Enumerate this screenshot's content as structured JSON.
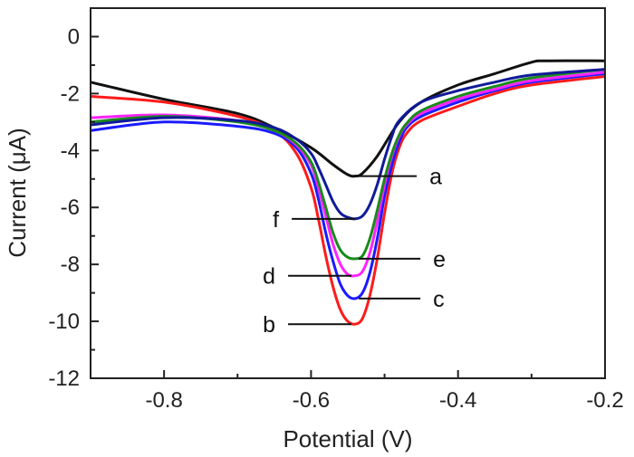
{
  "chart_data": {
    "type": "line",
    "title": "",
    "xlabel": "Potential (V)",
    "ylabel": "Current (μA)",
    "xlim": [
      -0.9,
      -0.2
    ],
    "ylim": [
      -12,
      1
    ],
    "xticks": [
      -0.8,
      -0.6,
      -0.4,
      -0.2
    ],
    "xtick_labels": [
      "-0.8",
      "-0.6",
      "-0.4",
      "-0.2"
    ],
    "yticks": [
      0,
      -2,
      -4,
      -6,
      -8,
      -10,
      -12
    ],
    "ytick_labels": [
      "0",
      "-2",
      "-4",
      "-6",
      "-8",
      "-10",
      "-12"
    ],
    "grid": false,
    "series": [
      {
        "name": "a",
        "color": "#111111",
        "x": [
          -0.9,
          -0.8,
          -0.7,
          -0.65,
          -0.6,
          -0.57,
          -0.55,
          -0.54,
          -0.53,
          -0.51,
          -0.48,
          -0.45,
          -0.4,
          -0.35,
          -0.3,
          -0.28,
          -0.2
        ],
        "y": [
          -1.6,
          -2.2,
          -2.7,
          -3.2,
          -3.9,
          -4.5,
          -4.85,
          -4.9,
          -4.8,
          -4.2,
          -3.0,
          -2.3,
          -1.7,
          -1.3,
          -0.9,
          -0.85,
          -0.85
        ]
      },
      {
        "name": "b",
        "color": "#ff1a1a",
        "x": [
          -0.9,
          -0.8,
          -0.7,
          -0.65,
          -0.62,
          -0.6,
          -0.59,
          -0.58,
          -0.57,
          -0.56,
          -0.55,
          -0.54,
          -0.53,
          -0.52,
          -0.51,
          -0.5,
          -0.49,
          -0.48,
          -0.47,
          -0.45,
          -0.4,
          -0.35,
          -0.3,
          -0.2
        ],
        "y": [
          -2.1,
          -2.3,
          -2.8,
          -3.3,
          -4.1,
          -5.3,
          -6.4,
          -7.7,
          -8.8,
          -9.6,
          -10.0,
          -10.1,
          -9.9,
          -9.1,
          -7.8,
          -6.2,
          -4.8,
          -3.9,
          -3.4,
          -2.95,
          -2.45,
          -2.0,
          -1.7,
          -1.4
        ]
      },
      {
        "name": "c",
        "color": "#1a1aff",
        "x": [
          -0.9,
          -0.8,
          -0.7,
          -0.65,
          -0.62,
          -0.6,
          -0.59,
          -0.58,
          -0.57,
          -0.56,
          -0.55,
          -0.54,
          -0.53,
          -0.52,
          -0.51,
          -0.5,
          -0.49,
          -0.48,
          -0.47,
          -0.45,
          -0.4,
          -0.35,
          -0.3,
          -0.2
        ],
        "y": [
          -3.3,
          -3.0,
          -3.15,
          -3.4,
          -3.9,
          -4.8,
          -5.7,
          -6.9,
          -7.9,
          -8.7,
          -9.1,
          -9.2,
          -9.0,
          -8.3,
          -7.1,
          -5.6,
          -4.5,
          -3.7,
          -3.2,
          -2.8,
          -2.3,
          -1.9,
          -1.6,
          -1.3
        ]
      },
      {
        "name": "d",
        "color": "#ff22ff",
        "x": [
          -0.9,
          -0.8,
          -0.7,
          -0.65,
          -0.62,
          -0.6,
          -0.59,
          -0.58,
          -0.57,
          -0.56,
          -0.55,
          -0.54,
          -0.53,
          -0.52,
          -0.51,
          -0.5,
          -0.49,
          -0.48,
          -0.47,
          -0.45,
          -0.4,
          -0.35,
          -0.3,
          -0.2
        ],
        "y": [
          -2.85,
          -2.75,
          -2.95,
          -3.3,
          -3.8,
          -4.5,
          -5.3,
          -6.3,
          -7.3,
          -8.0,
          -8.35,
          -8.4,
          -8.25,
          -7.6,
          -6.5,
          -5.2,
          -4.2,
          -3.5,
          -3.1,
          -2.7,
          -2.2,
          -1.85,
          -1.55,
          -1.25
        ]
      },
      {
        "name": "e",
        "color": "#1a8a1a",
        "x": [
          -0.9,
          -0.8,
          -0.7,
          -0.65,
          -0.62,
          -0.6,
          -0.59,
          -0.58,
          -0.57,
          -0.56,
          -0.55,
          -0.54,
          -0.53,
          -0.52,
          -0.51,
          -0.5,
          -0.49,
          -0.48,
          -0.47,
          -0.45,
          -0.4,
          -0.35,
          -0.3,
          -0.2
        ],
        "y": [
          -3.0,
          -2.8,
          -3.0,
          -3.3,
          -3.75,
          -4.4,
          -5.1,
          -6.0,
          -6.9,
          -7.5,
          -7.75,
          -7.8,
          -7.7,
          -7.1,
          -6.1,
          -5.0,
          -4.1,
          -3.45,
          -3.05,
          -2.6,
          -2.1,
          -1.75,
          -1.45,
          -1.15
        ]
      },
      {
        "name": "f",
        "color": "#101a99",
        "x": [
          -0.9,
          -0.8,
          -0.7,
          -0.65,
          -0.62,
          -0.6,
          -0.59,
          -0.58,
          -0.57,
          -0.56,
          -0.55,
          -0.54,
          -0.53,
          -0.52,
          -0.51,
          -0.5,
          -0.49,
          -0.48,
          -0.45,
          -0.4,
          -0.35,
          -0.3,
          -0.2
        ],
        "y": [
          -3.1,
          -2.85,
          -2.95,
          -3.2,
          -3.6,
          -4.1,
          -4.6,
          -5.2,
          -5.8,
          -6.2,
          -6.35,
          -6.4,
          -6.3,
          -5.9,
          -5.2,
          -4.3,
          -3.5,
          -2.95,
          -2.3,
          -1.9,
          -1.6,
          -1.35,
          -1.15
        ]
      }
    ],
    "annotations": [
      {
        "text": "a",
        "series": "a",
        "at_x": -0.54,
        "at_y": -4.9,
        "side": "right",
        "label_y": -4.9
      },
      {
        "text": "f",
        "series": "f",
        "at_x": -0.54,
        "at_y": -6.4,
        "side": "left",
        "label_y": -6.4
      },
      {
        "text": "e",
        "series": "e",
        "at_x": -0.535,
        "at_y": -7.8,
        "side": "right",
        "label_y": -7.8
      },
      {
        "text": "d",
        "series": "d",
        "at_x": -0.545,
        "at_y": -8.4,
        "side": "left",
        "label_y": -8.4
      },
      {
        "text": "c",
        "series": "c",
        "at_x": -0.535,
        "at_y": -9.2,
        "side": "right",
        "label_y": -9.2
      },
      {
        "text": "b",
        "series": "b",
        "at_x": -0.545,
        "at_y": -10.1,
        "side": "left",
        "label_y": -10.1
      }
    ]
  }
}
